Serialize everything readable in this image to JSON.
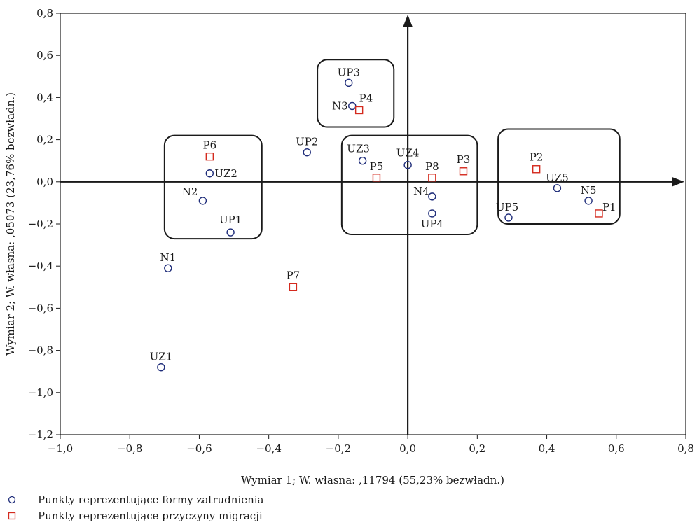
{
  "chart_data": {
    "type": "scatter",
    "title": "",
    "xlabel": "Wymiar 1; W. własna: ,11794 (55,23% bezwładn.)",
    "ylabel": "Wymiar 2; W. własna: ,05073 (23,76% bezwładn.)",
    "xlim": [
      -1.0,
      0.8
    ],
    "ylim": [
      -1.2,
      0.8
    ],
    "x_ticks": [
      -1.0,
      -0.8,
      -0.6,
      -0.4,
      -0.2,
      0.0,
      0.2,
      0.4,
      0.6,
      0.8
    ],
    "y_ticks": [
      -1.2,
      -1.0,
      -0.8,
      -0.6,
      -0.4,
      -0.2,
      0.0,
      0.2,
      0.4,
      0.6,
      0.8
    ],
    "x_tick_labels": [
      "−1,0",
      "−0,8",
      "−0,6",
      "−0,4",
      "−0,2",
      "0,0",
      "0,2",
      "0,4",
      "0,6",
      "0,8"
    ],
    "y_tick_labels": [
      "−1,2",
      "−1,0",
      "−0,8",
      "−0,6",
      "−0,4",
      "−0,2",
      "0,0",
      "0,2",
      "0,4",
      "0,6",
      "0,8"
    ],
    "grid": false,
    "legend_position": "bottom-left",
    "series": [
      {
        "name": "Punkty reprezentujące formy zatrudnienia",
        "marker": "circle",
        "color": "#1f2d7a",
        "points": [
          {
            "label": "UP3",
            "x": -0.17,
            "y": 0.47
          },
          {
            "label": "N3",
            "x": -0.16,
            "y": 0.36
          },
          {
            "label": "UP2",
            "x": -0.29,
            "y": 0.14
          },
          {
            "label": "UZ3",
            "x": -0.13,
            "y": 0.1
          },
          {
            "label": "UZ4",
            "x": 0.0,
            "y": 0.08
          },
          {
            "label": "UZ2",
            "x": -0.57,
            "y": 0.04
          },
          {
            "label": "N2",
            "x": -0.59,
            "y": -0.09
          },
          {
            "label": "UP1",
            "x": -0.51,
            "y": -0.24
          },
          {
            "label": "N1",
            "x": -0.69,
            "y": -0.41
          },
          {
            "label": "UZ1",
            "x": -0.71,
            "y": -0.88
          },
          {
            "label": "N4",
            "x": 0.07,
            "y": -0.07
          },
          {
            "label": "UP4",
            "x": 0.07,
            "y": -0.15
          },
          {
            "label": "UZ5",
            "x": 0.43,
            "y": -0.03
          },
          {
            "label": "N5",
            "x": 0.52,
            "y": -0.09
          },
          {
            "label": "UP5",
            "x": 0.29,
            "y": -0.17
          }
        ]
      },
      {
        "name": "Punkty reprezentujące przyczyny migracji",
        "marker": "square",
        "color": "#d42a1e",
        "points": [
          {
            "label": "P4",
            "x": -0.14,
            "y": 0.34
          },
          {
            "label": "P6",
            "x": -0.57,
            "y": 0.12
          },
          {
            "label": "P5",
            "x": -0.09,
            "y": 0.02
          },
          {
            "label": "P8",
            "x": 0.07,
            "y": 0.02
          },
          {
            "label": "P3",
            "x": 0.16,
            "y": 0.05
          },
          {
            "label": "P2",
            "x": 0.37,
            "y": 0.06
          },
          {
            "label": "P1",
            "x": 0.55,
            "y": -0.15
          },
          {
            "label": "P7",
            "x": -0.33,
            "y": -0.5
          }
        ]
      }
    ],
    "cluster_boxes": [
      {
        "name": "cluster-upper",
        "x_range": [
          -0.26,
          -0.04
        ],
        "y_range": [
          0.26,
          0.58
        ]
      },
      {
        "name": "cluster-left",
        "x_range": [
          -0.7,
          -0.42
        ],
        "y_range": [
          -0.27,
          0.22
        ]
      },
      {
        "name": "cluster-center",
        "x_range": [
          -0.19,
          0.2
        ],
        "y_range": [
          -0.25,
          0.22
        ]
      },
      {
        "name": "cluster-right",
        "x_range": [
          0.26,
          0.61
        ],
        "y_range": [
          -0.2,
          0.25
        ]
      }
    ]
  }
}
